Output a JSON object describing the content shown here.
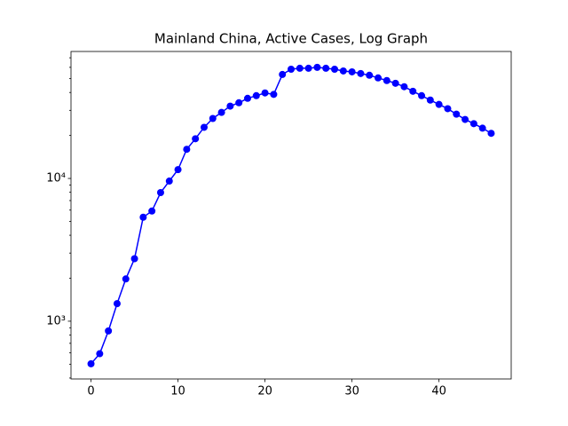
{
  "chart_data": {
    "type": "line",
    "title": "Mainland China, Active Cases, Log Graph",
    "x": [
      0,
      1,
      2,
      3,
      4,
      5,
      6,
      7,
      8,
      9,
      10,
      11,
      12,
      13,
      14,
      15,
      16,
      17,
      18,
      19,
      20,
      21,
      22,
      23,
      24,
      25,
      26,
      27,
      28,
      29,
      30,
      31,
      32,
      33,
      34,
      35,
      36,
      37,
      38,
      39,
      40,
      41,
      42,
      43,
      44,
      45,
      46
    ],
    "series": [
      {
        "color": "#0000ff",
        "values": [
          503,
          592,
          855,
          1328,
          1977,
          2740,
          5350,
          5910,
          7960,
          9580,
          11530,
          16000,
          18970,
          22800,
          26300,
          29000,
          32100,
          33900,
          36400,
          38000,
          39700,
          38800,
          53500,
          58200,
          59100,
          59100,
          60000,
          59100,
          58200,
          56600,
          55800,
          54300,
          52800,
          50600,
          48500,
          46400,
          43900,
          40800,
          38000,
          35400,
          33000,
          30800,
          28200,
          25900,
          24200,
          22500,
          20700
        ]
      }
    ],
    "xlim": [
      -2.3,
      48.3
    ],
    "xticks": [
      0,
      10,
      20,
      30,
      40
    ],
    "ylim": [
      394,
      77500
    ],
    "ylog": true,
    "yticks": [
      {
        "value": 1000,
        "label": "10³"
      },
      {
        "value": 10000,
        "label": "10⁴"
      }
    ],
    "yminorticks": [
      400,
      500,
      600,
      700,
      800,
      900,
      2000,
      3000,
      4000,
      5000,
      6000,
      7000,
      8000,
      9000,
      20000,
      30000,
      40000,
      50000,
      60000,
      70000
    ],
    "marker": true
  }
}
